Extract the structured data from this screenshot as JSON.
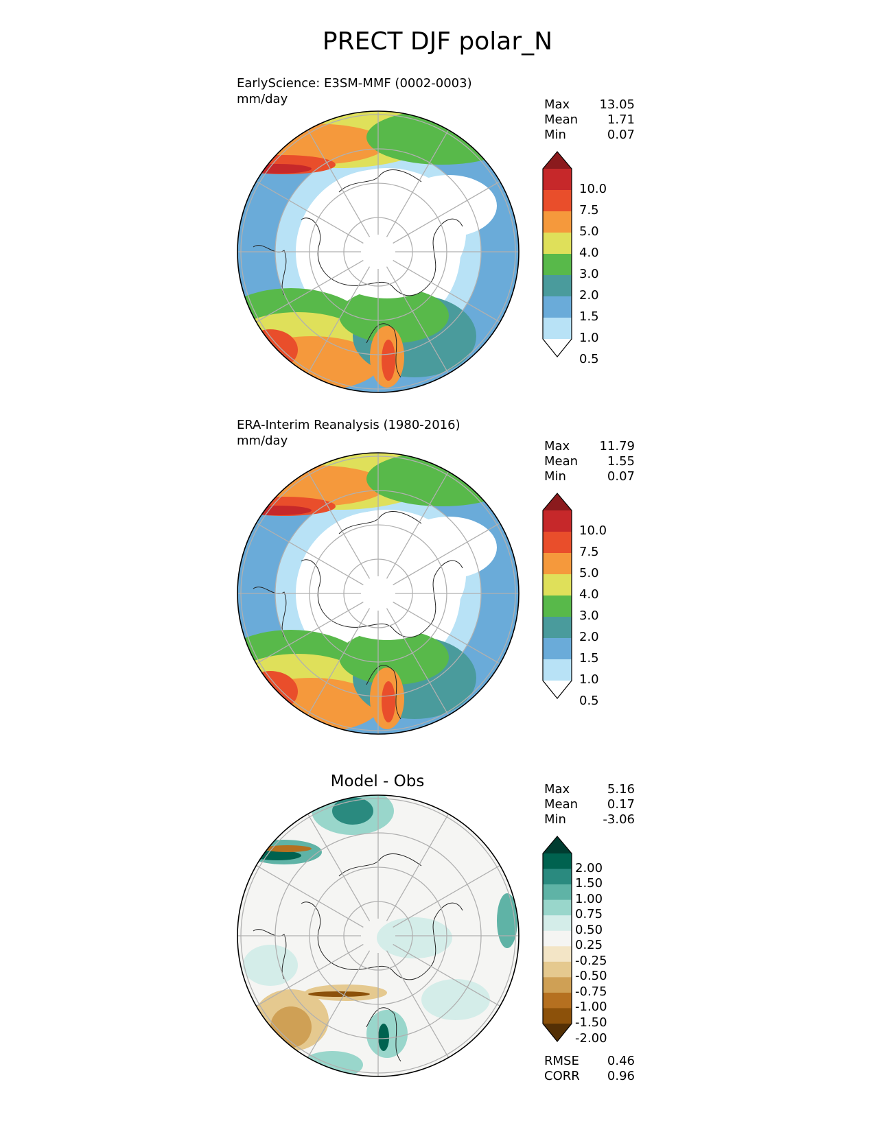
{
  "title": "PRECT DJF polar_N",
  "panels": {
    "test": {
      "title": "EarlyScience: E3SM-MMF (0002-0003)",
      "units": "mm/day",
      "stats": [
        {
          "label": "Max",
          "value": "13.05"
        },
        {
          "label": "Mean",
          "value": "1.71"
        },
        {
          "label": "Min",
          "value": "0.07"
        }
      ]
    },
    "ref": {
      "title": "ERA-Interim Reanalysis (1980-2016)",
      "units": "mm/day",
      "stats": [
        {
          "label": "Max",
          "value": "11.79"
        },
        {
          "label": "Mean",
          "value": "1.55"
        },
        {
          "label": "Min",
          "value": "0.07"
        }
      ]
    },
    "diff": {
      "title": "Model - Obs",
      "stats": [
        {
          "label": "Max",
          "value": "5.16"
        },
        {
          "label": "Mean",
          "value": "0.17"
        },
        {
          "label": "Min",
          "value": "-3.06"
        }
      ],
      "metrics": [
        {
          "label": "RMSE",
          "value": "0.46"
        },
        {
          "label": "CORR",
          "value": "0.96"
        }
      ]
    }
  },
  "chart_data": [
    {
      "type": "heatmap",
      "projection": "north polar stereographic",
      "title": "EarlyScience: E3SM-MMF (0002-0003)",
      "units": "mm/day",
      "levels": [
        0.5,
        1.0,
        1.5,
        2.0,
        3.0,
        4.0,
        5.0,
        7.5,
        10.0
      ],
      "level_labels": [
        "10.0",
        "7.5",
        "5.0",
        "4.0",
        "3.0",
        "2.0",
        "1.5",
        "1.0",
        "0.5"
      ],
      "colors": [
        "#ffffff",
        "#b8e2f6",
        "#6aabd9",
        "#4a9b9c",
        "#58b94a",
        "#dfe05a",
        "#f5993c",
        "#e94e2b",
        "#c6282a",
        "#8b1a1d"
      ],
      "max": 13.05,
      "mean": 1.71,
      "min": 0.07
    },
    {
      "type": "heatmap",
      "projection": "north polar stereographic",
      "title": "ERA-Interim Reanalysis (1980-2016)",
      "units": "mm/day",
      "levels": [
        0.5,
        1.0,
        1.5,
        2.0,
        3.0,
        4.0,
        5.0,
        7.5,
        10.0
      ],
      "level_labels": [
        "10.0",
        "7.5",
        "5.0",
        "4.0",
        "3.0",
        "2.0",
        "1.5",
        "1.0",
        "0.5"
      ],
      "colors": [
        "#ffffff",
        "#b8e2f6",
        "#6aabd9",
        "#4a9b9c",
        "#58b94a",
        "#dfe05a",
        "#f5993c",
        "#e94e2b",
        "#c6282a",
        "#8b1a1d"
      ],
      "max": 11.79,
      "mean": 1.55,
      "min": 0.07
    },
    {
      "type": "heatmap",
      "projection": "north polar stereographic",
      "title": "Model - Obs",
      "levels": [
        -2.0,
        -1.5,
        -1.0,
        -0.75,
        -0.5,
        -0.25,
        0.25,
        0.5,
        0.75,
        1.0,
        1.5,
        2.0
      ],
      "level_labels": [
        "2.00",
        "1.50",
        "1.00",
        "0.75",
        "0.50",
        "0.25",
        "-0.25",
        "-0.50",
        "-0.75",
        "-1.00",
        "-1.50",
        "-2.00"
      ],
      "colors": [
        "#543005",
        "#8c510a",
        "#b57020",
        "#cfa055",
        "#e5c98f",
        "#f3e5c6",
        "#f5f5f3",
        "#d4ede9",
        "#99d6cb",
        "#5fb3a6",
        "#2a8a7f",
        "#00624f",
        "#003c30"
      ],
      "max": 5.16,
      "mean": 0.17,
      "min": -3.06,
      "rmse": 0.46,
      "corr": 0.96
    }
  ]
}
